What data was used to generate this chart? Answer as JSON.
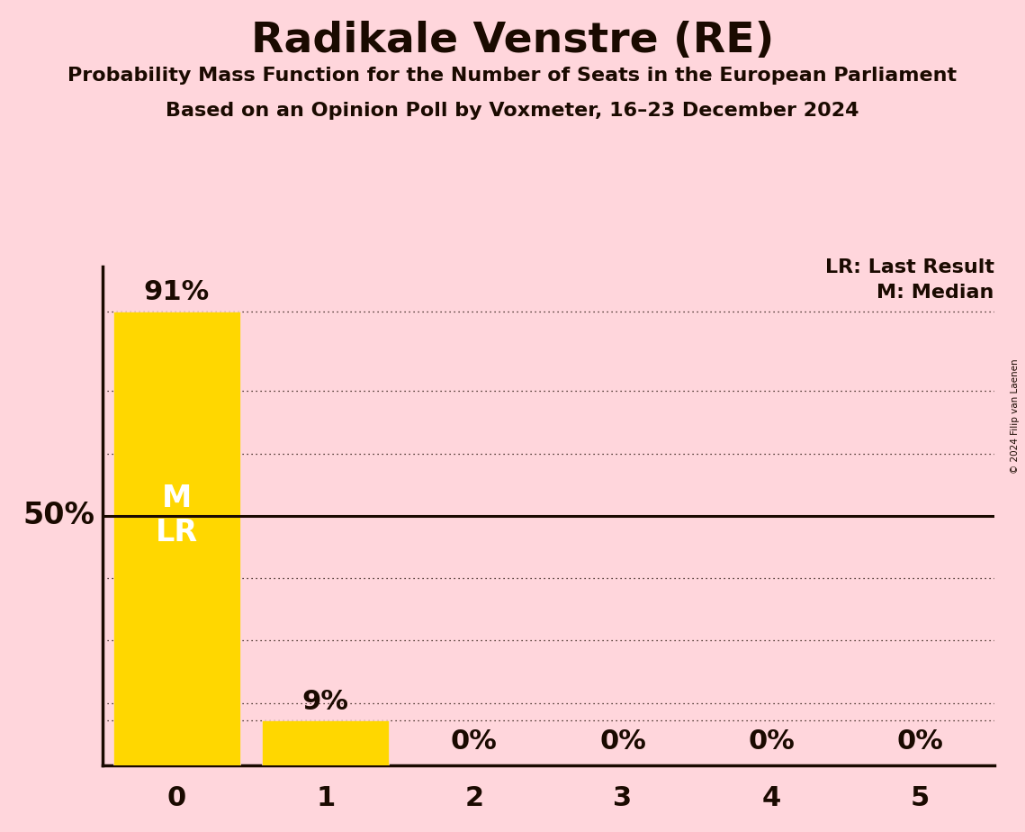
{
  "title": "Radikale Venstre (RE)",
  "subtitle1": "Probability Mass Function for the Number of Seats in the European Parliament",
  "subtitle2": "Based on an Opinion Poll by Voxmeter, 16–23 December 2024",
  "copyright": "© 2024 Filip van Laenen",
  "categories": [
    0,
    1,
    2,
    3,
    4,
    5
  ],
  "values": [
    0.91,
    0.09,
    0.0,
    0.0,
    0.0,
    0.0
  ],
  "bar_color": "#FFD700",
  "background_color": "#FFD6DC",
  "text_color": "#1a0a00",
  "bar_text_color": "#FFFFFF",
  "median_line_y": 0.5,
  "ylim_max": 1.0,
  "ylabel_50": "50%",
  "legend_lr": "LR: Last Result",
  "legend_m": "M: Median",
  "bar_labels": [
    "91%",
    "9%",
    "0%",
    "0%",
    "0%",
    "0%"
  ]
}
